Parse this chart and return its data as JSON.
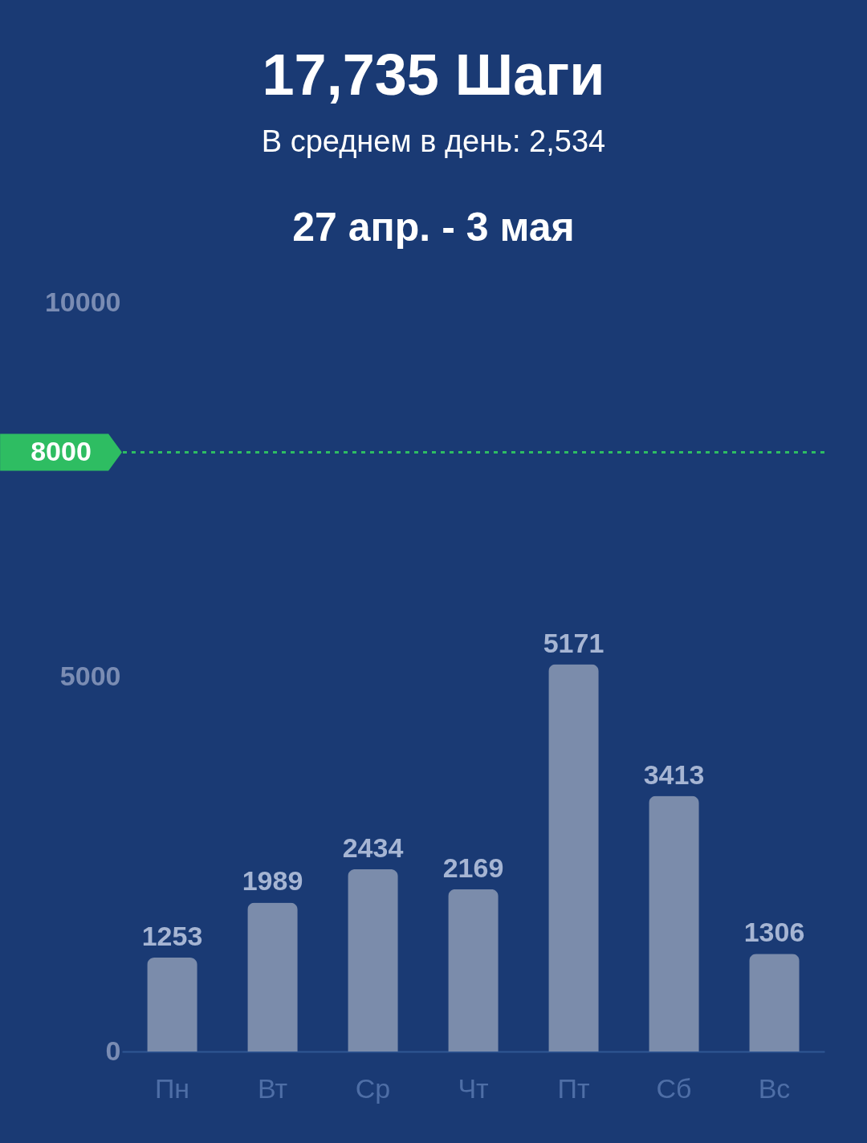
{
  "chart_data": {
    "type": "bar",
    "title": "17,735 Шаги",
    "subtitle": "В среднем в день:  2,534",
    "annotations": [
      "27 апр. - 3 мая"
    ],
    "categories": [
      "Пн",
      "Вт",
      "Ср",
      "Чт",
      "Пт",
      "Сб",
      "Вс"
    ],
    "values": [
      1253,
      1989,
      2434,
      2169,
      5171,
      3413,
      1306
    ],
    "color": "#7b8cab",
    "ylim": [
      0,
      10000
    ],
    "yticks": [
      0,
      5000,
      10000
    ],
    "grid": false,
    "data_labels": true,
    "ref_lines": [
      {
        "axis": "y",
        "value": 8000,
        "label": "8000",
        "color": "#2ebd62",
        "line_style": "dotted"
      }
    ]
  }
}
